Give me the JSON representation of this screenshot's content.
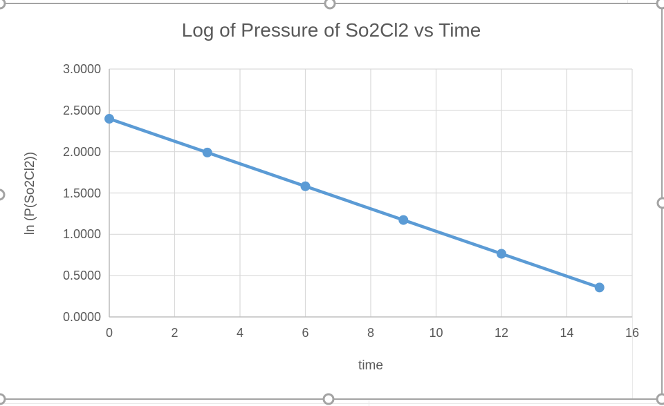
{
  "app": {
    "background_color": "#ffffff",
    "selection": {
      "state": "chart selected",
      "border_color": "#a3a3a3",
      "handle_fill": "#ffffff",
      "handles": [
        "top-left",
        "top-center",
        "top-right",
        "middle-left",
        "middle-right",
        "bottom-left",
        "bottom-center",
        "bottom-right"
      ]
    }
  },
  "chart_data": {
    "type": "line",
    "title": "Log of Pressure of So2Cl2 vs Time",
    "xlabel": "time",
    "ylabel": "ln (P(So2Cl2))",
    "x": [
      0,
      3,
      6,
      9,
      12,
      15
    ],
    "values": [
      2.3979,
      1.9896,
      1.5813,
      1.173,
      0.7646,
      0.3563
    ],
    "xlim": [
      0,
      16
    ],
    "ylim": [
      0,
      3
    ],
    "x_tick_values": [
      0,
      2,
      4,
      6,
      8,
      10,
      12,
      14,
      16
    ],
    "x_tick_labels": [
      "0",
      "2",
      "4",
      "6",
      "8",
      "10",
      "12",
      "14",
      "16"
    ],
    "y_tick_values": [
      0,
      0.5,
      1,
      1.5,
      2,
      2.5,
      3
    ],
    "y_tick_labels": [
      "0.0000",
      "0.5000",
      "1.0000",
      "1.5000",
      "2.0000",
      "2.5000",
      "3.0000"
    ],
    "grid": true,
    "legend": "none",
    "marker": "circle",
    "line_color": "#5b9bd5",
    "gridline_color": "#d9d9d9",
    "axis_line_color": "#bfbfbf",
    "text_color": "#595959"
  }
}
